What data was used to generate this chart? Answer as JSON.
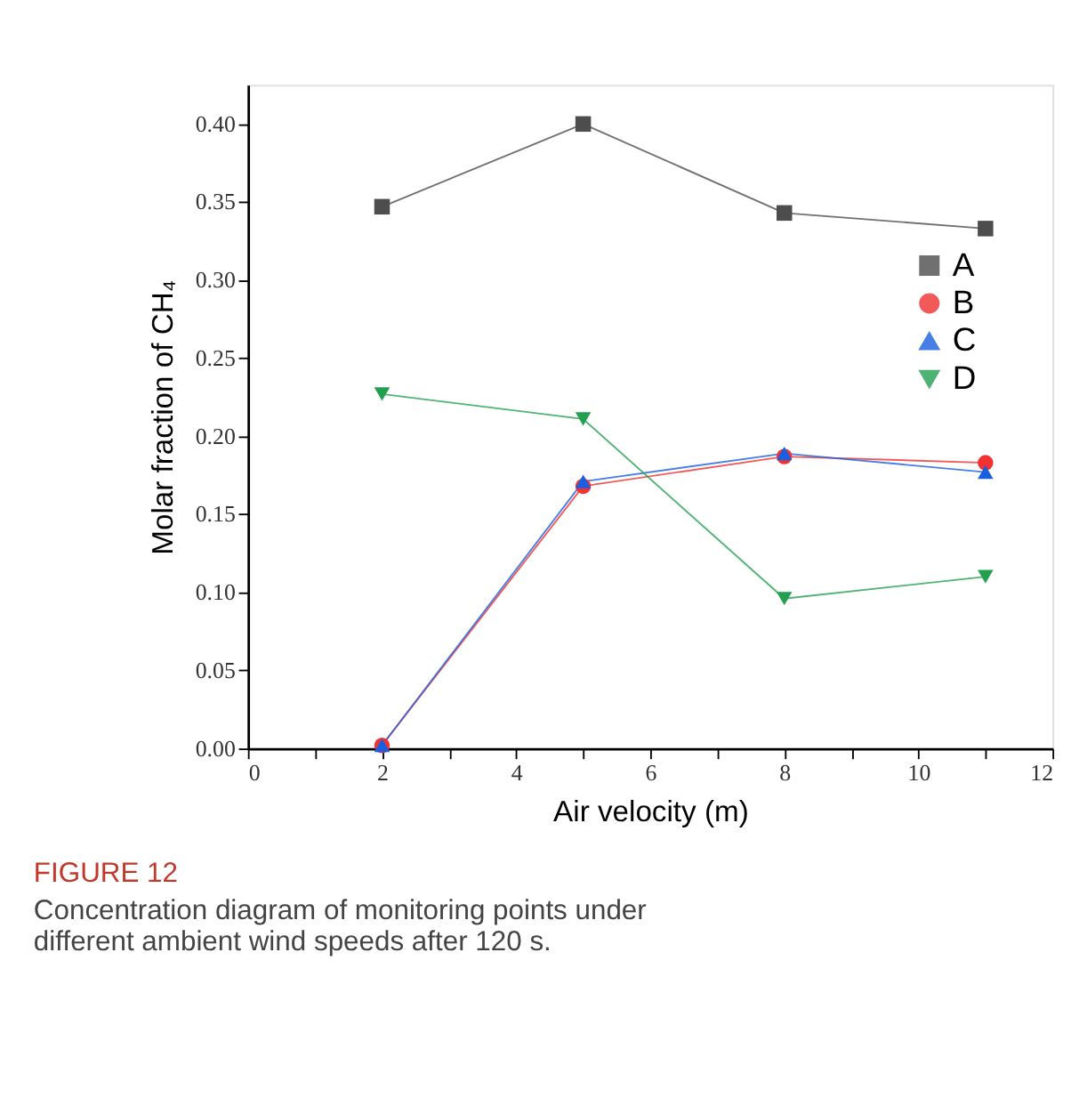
{
  "chart_data": {
    "type": "line",
    "title": "FIGURE 12",
    "subtitle": "Concentration diagram of monitoring points under different ambient wind speeds after 120 s.",
    "xlabel": "Air velocity (m)",
    "ylabel": "Molar fraction of CH₄",
    "x": [
      2,
      5,
      8,
      11
    ],
    "series": [
      {
        "name": "A",
        "color": "#4d4d4d",
        "marker": "square",
        "values": [
          0.347,
          0.4,
          0.343,
          0.333
        ]
      },
      {
        "name": "B",
        "color": "#f03232",
        "marker": "circle",
        "values": [
          0.002,
          0.168,
          0.187,
          0.183
        ]
      },
      {
        "name": "C",
        "color": "#1a5fe0",
        "marker": "triangle",
        "values": [
          0.002,
          0.171,
          0.189,
          0.177
        ]
      },
      {
        "name": "D",
        "color": "#22a050",
        "marker": "triangle-down",
        "values": [
          0.227,
          0.211,
          0.096,
          0.11
        ]
      }
    ],
    "xlim": [
      0,
      12
    ],
    "xticks": [
      0,
      {
        "value": 1,
        "label": null
      },
      2,
      {
        "value": 3,
        "label": null
      },
      4,
      {
        "value": 5,
        "label": null
      },
      6,
      {
        "value": 7,
        "label": null
      },
      8,
      {
        "value": 9,
        "label": null
      },
      10,
      {
        "value": 11,
        "label": null
      },
      12
    ],
    "ylim": [
      0,
      0.425
    ],
    "yticks": [
      {
        "value": 0,
        "label": "0.00"
      },
      0.05,
      {
        "value": 0.1,
        "label": "0.10"
      },
      0.15,
      {
        "value": 0.2,
        "label": "0.20"
      },
      0.25,
      {
        "value": 0.3,
        "label": "0.30"
      },
      0.35,
      {
        "value": 0.4,
        "label": "0.40"
      }
    ],
    "grid": false,
    "legend": "top right",
    "line_style": "solid"
  }
}
